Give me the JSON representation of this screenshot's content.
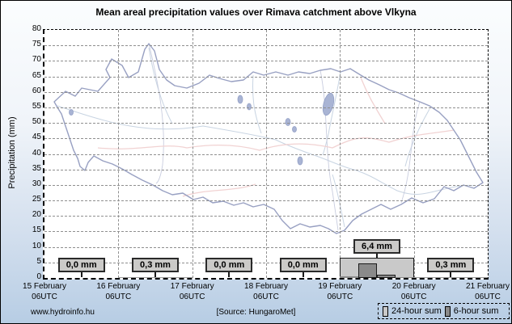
{
  "chart_data": {
    "type": "bar",
    "title": "Mean areal precipitation values over Rimava catchment above Vlkyna",
    "ylabel": "Precipitation (mm)",
    "ylim": [
      0,
      80
    ],
    "ytick_step": 5,
    "grid": true,
    "legend_position": "bottom-right",
    "x_categories": [
      [
        "15 February",
        "06UTC"
      ],
      [
        "16 February",
        "06UTC"
      ],
      [
        "17 February",
        "06UTC"
      ],
      [
        "18 February",
        "06UTC"
      ],
      [
        "19 February",
        "06UTC"
      ],
      [
        "20 February",
        "06UTC"
      ],
      [
        "21 February",
        "06UTC"
      ]
    ],
    "series": [
      {
        "name": "24-hour sum",
        "color": "#c9c9c9",
        "border_color": "#1a1a1a",
        "values": [
          0.0,
          0.3,
          0.0,
          0.0,
          6.4,
          0.3
        ],
        "value_labels": [
          "0,0 mm",
          "0,3 mm",
          "0,0 mm",
          "0,0 mm",
          "6,4 mm",
          "0,3 mm"
        ]
      },
      {
        "name": "6-hour sum",
        "color": "#8a8a8a",
        "border_color": "#1a1a1a",
        "day_index": 4,
        "values": [
          0.4,
          4.7,
          1.0,
          0.3
        ]
      }
    ]
  },
  "legend": {
    "items": [
      {
        "label": "24-hour sum",
        "color": "#c9c9c9"
      },
      {
        "label": "6-hour sum",
        "color": "#8a8a8a"
      }
    ]
  },
  "footer": {
    "website": "www.hydroinfo.hu",
    "source": "[Source: HungaroMet]"
  }
}
